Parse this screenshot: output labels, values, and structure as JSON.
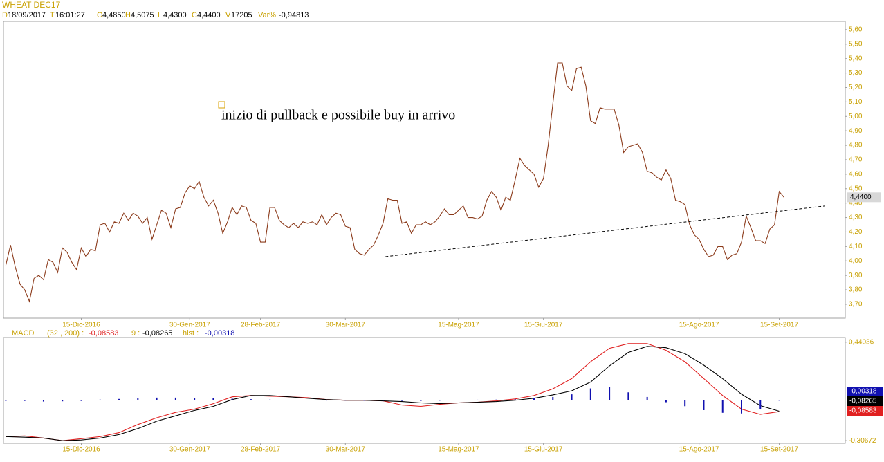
{
  "header": {
    "title": "WHEAT DEC17",
    "info": [
      {
        "label": "D",
        "value": "18/09/2017"
      },
      {
        "label": "T",
        "value": "16:01:27"
      },
      {
        "label": "O",
        "value": "4,4850"
      },
      {
        "label": "H",
        "value": "4,5075"
      },
      {
        "label": "L",
        "value": "4,4300"
      },
      {
        "label": "C",
        "value": "4,4400"
      },
      {
        "label": "V",
        "value": "17205"
      },
      {
        "label": "Var%",
        "value": "-0,94813"
      }
    ]
  },
  "chart_data": [
    {
      "type": "line",
      "color": "#8b3a1a",
      "annotation": "inizio di pullback e possibile buy in arrivo",
      "values": [
        3.97,
        4.11,
        3.96,
        3.84,
        3.8,
        3.72,
        3.88,
        3.9,
        3.87,
        4.01,
        3.99,
        3.92,
        4.09,
        4.06,
        3.99,
        3.94,
        4.09,
        4.03,
        4.08,
        4.07,
        4.25,
        4.26,
        4.2,
        4.27,
        4.26,
        4.33,
        4.28,
        4.33,
        4.31,
        4.26,
        4.3,
        4.15,
        4.25,
        4.35,
        4.33,
        4.23,
        4.36,
        4.37,
        4.47,
        4.52,
        4.5,
        4.55,
        4.44,
        4.38,
        4.42,
        4.33,
        4.19,
        4.27,
        4.37,
        4.32,
        4.38,
        4.37,
        4.28,
        4.26,
        4.13,
        4.13,
        4.37,
        4.37,
        4.28,
        4.25,
        4.23,
        4.26,
        4.23,
        4.27,
        4.26,
        4.27,
        4.25,
        4.32,
        4.25,
        4.3,
        4.33,
        4.32,
        4.24,
        4.23,
        4.08,
        4.05,
        4.04,
        4.08,
        4.11,
        4.18,
        4.26,
        4.43,
        4.42,
        4.42,
        4.26,
        4.27,
        4.19,
        4.25,
        4.25,
        4.27,
        4.25,
        4.27,
        4.31,
        4.36,
        4.32,
        4.32,
        4.35,
        4.38,
        4.3,
        4.3,
        4.29,
        4.31,
        4.42,
        4.48,
        4.44,
        4.35,
        4.44,
        4.42,
        4.56,
        4.71,
        4.66,
        4.63,
        4.6,
        4.51,
        4.57,
        4.8,
        5.09,
        5.37,
        5.37,
        5.21,
        5.18,
        5.33,
        5.34,
        5.21,
        4.97,
        4.95,
        5.06,
        5.05,
        5.05,
        5.05,
        4.94,
        4.75,
        4.79,
        4.8,
        4.81,
        4.75,
        4.62,
        4.61,
        4.58,
        4.56,
        4.63,
        4.57,
        4.42,
        4.41,
        4.39,
        4.25,
        4.18,
        4.15,
        4.08,
        4.03,
        4.04,
        4.1,
        4.1,
        4.01,
        4.04,
        4.05,
        4.13,
        4.31,
        4.23,
        4.14,
        4.14,
        4.12,
        4.22,
        4.25,
        4.48,
        4.44
      ],
      "last_value": {
        "value": 4.44,
        "label": "4,4400"
      },
      "trendline": {
        "x": [
          80.5,
          173.6
        ],
        "y": [
          4.03,
          4.38
        ]
      },
      "xlim": [
        -0.5,
        178
      ],
      "xticks": [
        {
          "value": 16,
          "label": "15-Dic-2016"
        },
        {
          "value": 39,
          "label": "30-Gen-2017"
        },
        {
          "value": 54,
          "label": "28-Feb-2017"
        },
        {
          "value": 72,
          "label": "30-Mar-2017"
        },
        {
          "value": 96,
          "label": "15-Mag-2017"
        },
        {
          "value": 114,
          "label": "15-Giu-2017"
        },
        {
          "value": 147,
          "label": "15-Ago-2017"
        },
        {
          "value": 164,
          "label": "15-Set-2017"
        }
      ],
      "ylim": [
        3.604,
        5.657
      ],
      "yticks": [
        {
          "value": 3.7,
          "label": "3,70"
        },
        {
          "value": 3.8,
          "label": "3,80"
        },
        {
          "value": 3.9,
          "label": "3,90"
        },
        {
          "value": 4.0,
          "label": "4,00"
        },
        {
          "value": 4.1,
          "label": "4,10"
        },
        {
          "value": 4.2,
          "label": "4,20"
        },
        {
          "value": 4.3,
          "label": "4,30"
        },
        {
          "value": 4.4,
          "label": "4,40"
        },
        {
          "value": 4.5,
          "label": "4,50"
        },
        {
          "value": 4.6,
          "label": "4,60"
        },
        {
          "value": 4.7,
          "label": "4,70"
        },
        {
          "value": 4.8,
          "label": "4,80"
        },
        {
          "value": 4.9,
          "label": "4,90"
        },
        {
          "value": 5.0,
          "label": "5,00"
        },
        {
          "value": 5.1,
          "label": "5,10"
        },
        {
          "value": 5.2,
          "label": "5,20"
        },
        {
          "value": 5.3,
          "label": "5,30"
        },
        {
          "value": 5.4,
          "label": "5,40"
        },
        {
          "value": 5.5,
          "label": "5,50"
        },
        {
          "value": 5.6,
          "label": "5,60"
        }
      ]
    },
    {
      "type": "line",
      "title": "MACD",
      "x": [
        0,
        4,
        8,
        12,
        16,
        20,
        24,
        28,
        32,
        36,
        40,
        44,
        48,
        52,
        56,
        60,
        64,
        68,
        72,
        76,
        80,
        84,
        88,
        92,
        96,
        100,
        104,
        108,
        112,
        116,
        120,
        124,
        128,
        132,
        136,
        140,
        144,
        148,
        152,
        156,
        160,
        164
      ],
      "series": [
        {
          "name": "(32 , 200) :",
          "color": "#e02020",
          "style": "line",
          "last_label": "-0,08583",
          "values": [
            -0.276,
            -0.271,
            -0.287,
            -0.307,
            -0.292,
            -0.276,
            -0.246,
            -0.184,
            -0.133,
            -0.092,
            -0.067,
            -0.026,
            0.026,
            0.036,
            0.031,
            0.026,
            0.02,
            0.005,
            0,
            0,
            -0.005,
            -0.036,
            -0.046,
            -0.031,
            -0.02,
            -0.015,
            -0.005,
            0.01,
            0.036,
            0.087,
            0.164,
            0.292,
            0.394,
            0.43,
            0.43,
            0.379,
            0.292,
            0.164,
            0.036,
            -0.067,
            -0.107,
            -0.086
          ]
        },
        {
          "name": "9 :",
          "color": "#000000",
          "style": "line",
          "last_label": "-0,08265",
          "values": [
            -0.276,
            -0.281,
            -0.287,
            -0.307,
            -0.302,
            -0.287,
            -0.261,
            -0.215,
            -0.159,
            -0.118,
            -0.077,
            -0.046,
            0.005,
            0.036,
            0.036,
            0.026,
            0.015,
            0.005,
            0,
            0,
            -0.005,
            -0.01,
            -0.02,
            -0.026,
            -0.02,
            -0.015,
            -0.01,
            0,
            0.015,
            0.041,
            0.072,
            0.138,
            0.261,
            0.363,
            0.409,
            0.399,
            0.353,
            0.266,
            0.164,
            0.046,
            -0.041,
            -0.083
          ]
        },
        {
          "name": "hist :",
          "color": "#1010b0",
          "style": "bars",
          "last_label": "-0,00318",
          "values": [
            -0.005,
            -0.005,
            -0.01,
            -0.008,
            -0.005,
            0.005,
            0.01,
            0.015,
            0.02,
            0.02,
            0.018,
            0.015,
            0.012,
            0.008,
            0.005,
            0.003,
            0.002,
            0.001,
            0.001,
            -0.001,
            -0.003,
            -0.005,
            -0.006,
            -0.003,
            0.002,
            0.004,
            0.005,
            0.008,
            0.015,
            0.025,
            0.045,
            0.09,
            0.1,
            0.06,
            0.025,
            -0.015,
            -0.045,
            -0.075,
            -0.095,
            -0.1,
            -0.07,
            -0.003
          ]
        }
      ],
      "xlim": [
        -0.5,
        178
      ],
      "xticks": [
        {
          "value": 16,
          "label": "15-Dic-2016"
        },
        {
          "value": 39,
          "label": "30-Gen-2017"
        },
        {
          "value": 54,
          "label": "28-Feb-2017"
        },
        {
          "value": 72,
          "label": "30-Mar-2017"
        },
        {
          "value": 96,
          "label": "15-Mag-2017"
        },
        {
          "value": 114,
          "label": "15-Giu-2017"
        },
        {
          "value": 147,
          "label": "15-Ago-2017"
        },
        {
          "value": 164,
          "label": "15-Set-2017"
        }
      ],
      "ylim": [
        -0.327,
        0.476
      ],
      "yticks": [
        {
          "value": 0.44036,
          "label": "0,44036"
        },
        {
          "value": -0.30672,
          "label": "-0,30672"
        }
      ]
    }
  ]
}
